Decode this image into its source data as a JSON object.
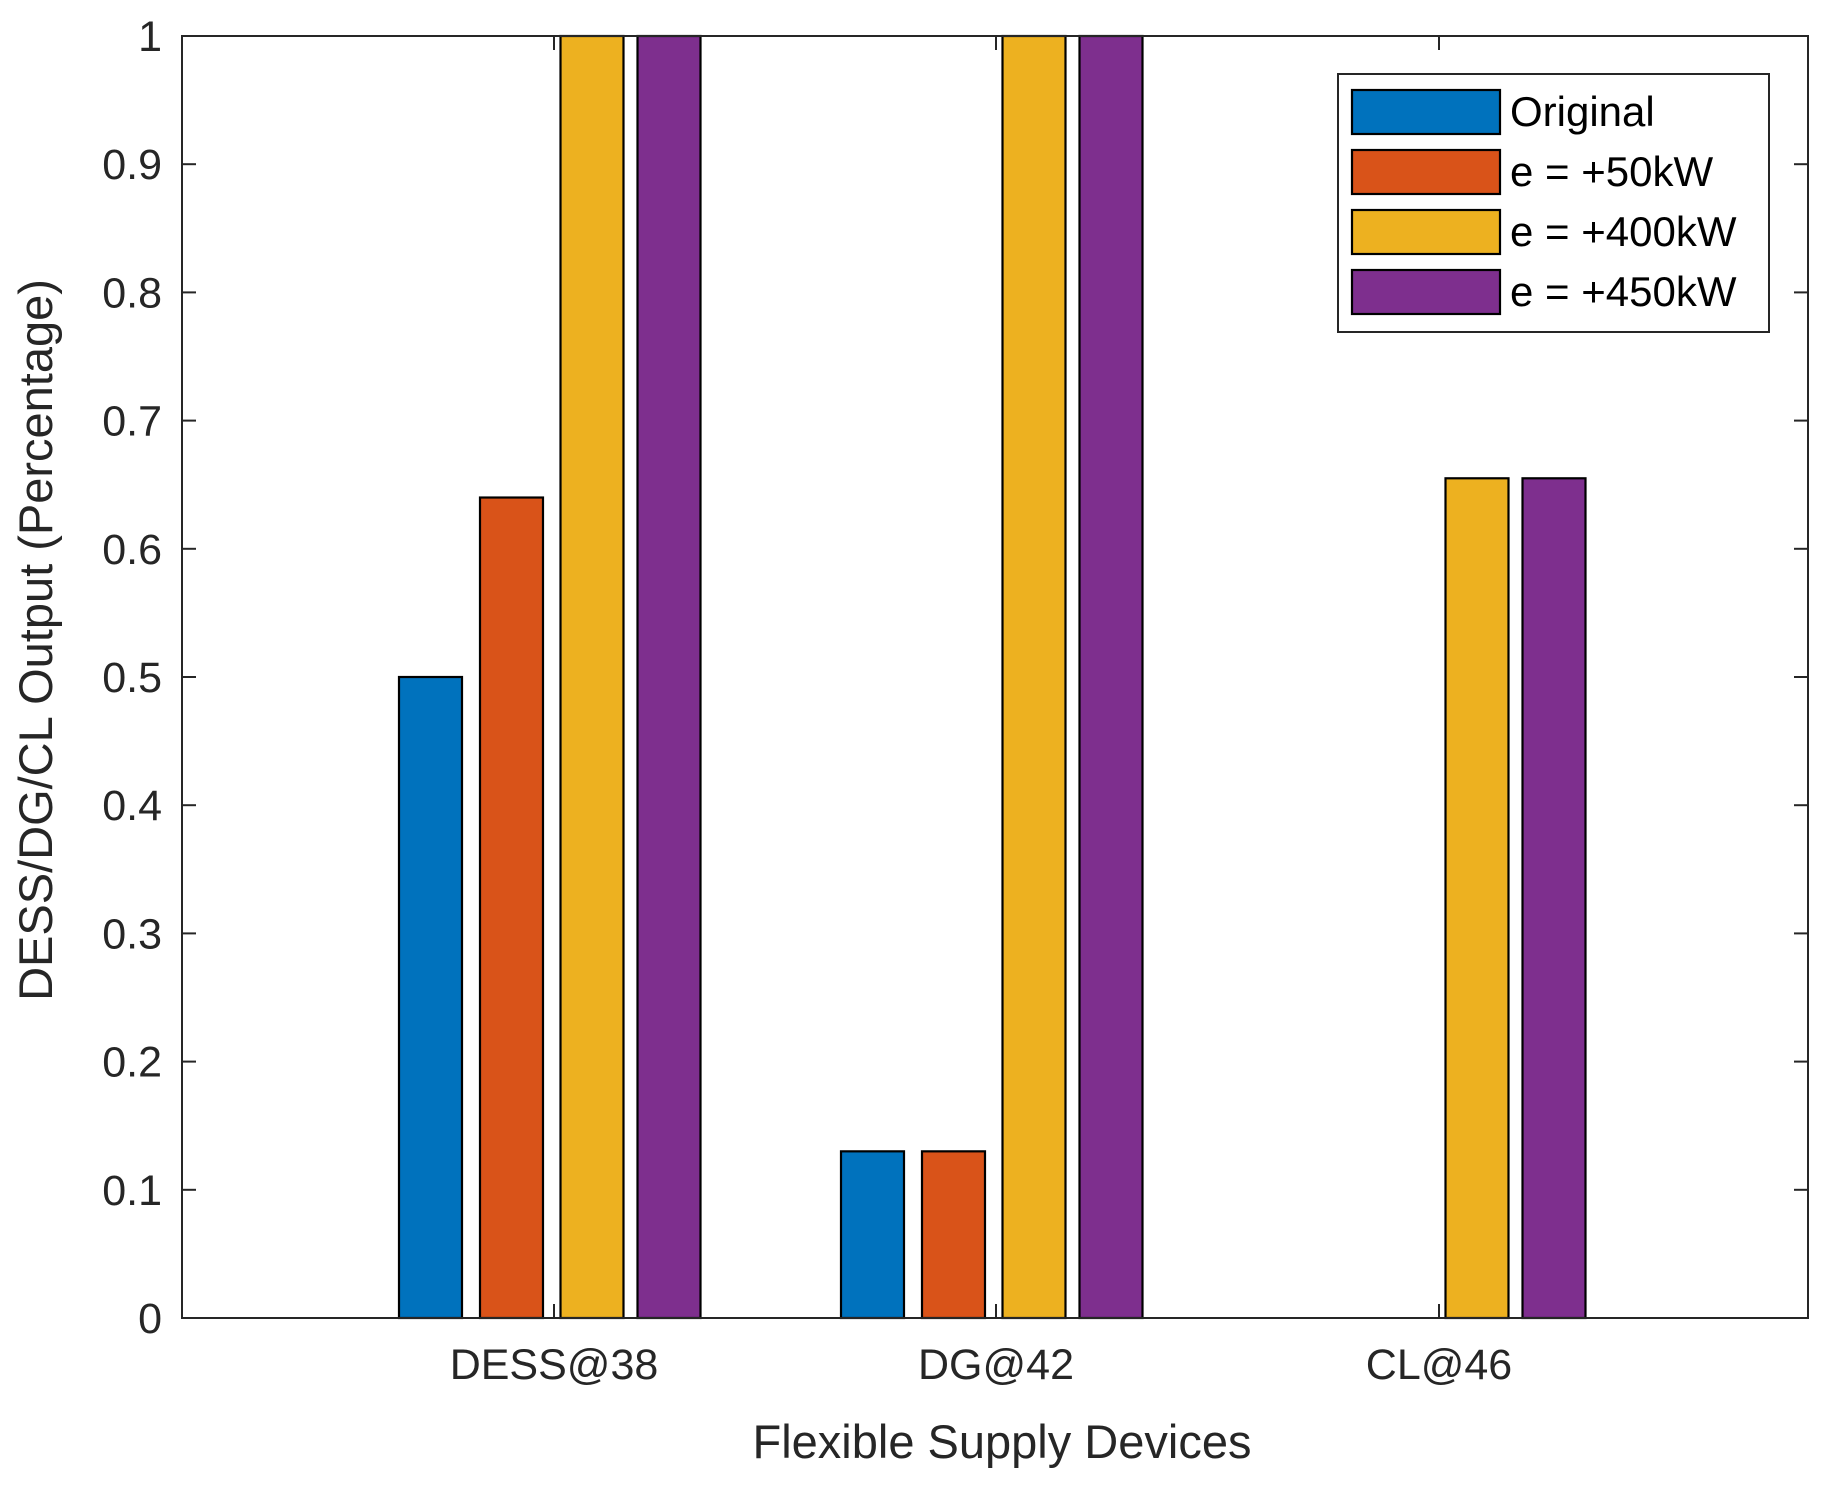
{
  "chart_data": {
    "type": "bar",
    "title": "",
    "xlabel": "Flexible Supply Devices",
    "ylabel": "DESS/DG/CL Output (Percentage)",
    "categories": [
      "DESS@38",
      "DG@42",
      "CL@46"
    ],
    "series": [
      {
        "name": "Original",
        "color": "#0072BD",
        "values": [
          0.5,
          0.13,
          0
        ]
      },
      {
        "name": "e = +50kW",
        "color": "#D95319",
        "values": [
          0.64,
          0.13,
          0
        ]
      },
      {
        "name": "e = +400kW",
        "color": "#EDB120",
        "values": [
          1.0,
          1.0,
          0.655
        ]
      },
      {
        "name": "e = +450kW",
        "color": "#7E2F8E",
        "values": [
          1.0,
          1.0,
          0.655
        ]
      }
    ],
    "ylim": [
      0,
      1
    ],
    "yticks": [
      "0",
      "0.1",
      "0.2",
      "0.3",
      "0.4",
      "0.5",
      "0.6",
      "0.7",
      "0.8",
      "0.9",
      "1"
    ],
    "legend_position": "top-right",
    "grid": false
  }
}
